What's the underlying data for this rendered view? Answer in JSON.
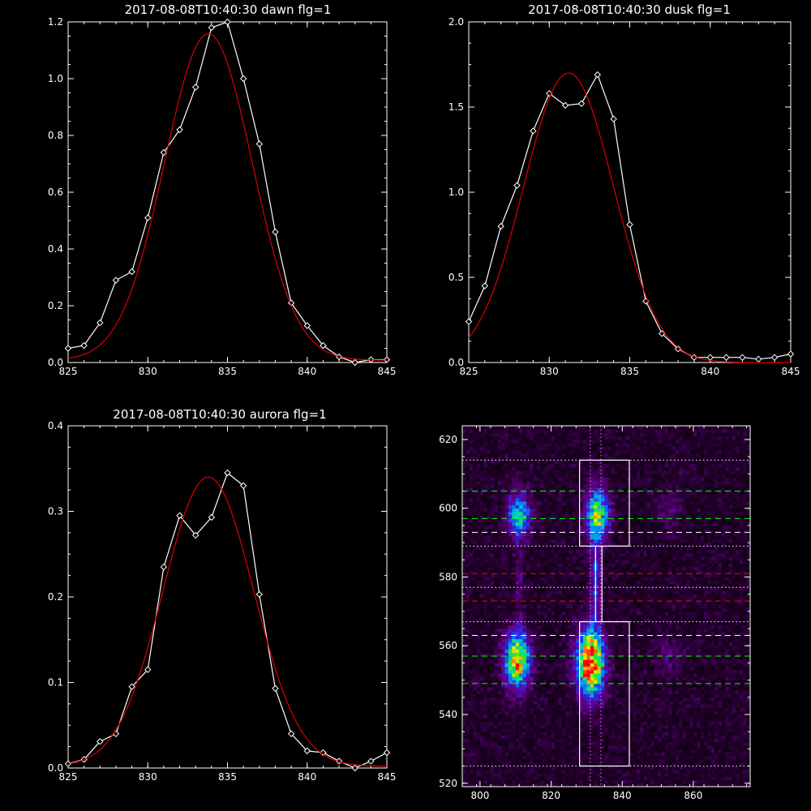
{
  "chart_data": [
    {
      "id": "dawn",
      "type": "line",
      "title": "2017-08-08T10:40:30 dawn flg=1",
      "xlim": [
        825,
        845
      ],
      "ylim": [
        0,
        1.2
      ],
      "xticks": [
        "825",
        "830",
        "835",
        "840",
        "845"
      ],
      "yticks": [
        "0.0",
        "0.2",
        "0.4",
        "0.6",
        "0.8",
        "1.0",
        "1.2"
      ],
      "series": [
        {
          "role": "measured",
          "color": "#ffffff",
          "marker": "diamond",
          "x": [
            825,
            826,
            827,
            828,
            829,
            830,
            831,
            832,
            833,
            834,
            835,
            836,
            837,
            838,
            839,
            840,
            841,
            842,
            843,
            844,
            845
          ],
          "y": [
            0.05,
            0.06,
            0.14,
            0.29,
            0.32,
            0.51,
            0.74,
            0.82,
            0.97,
            1.18,
            1.2,
            1.0,
            0.77,
            0.46,
            0.21,
            0.13,
            0.06,
            0.02,
            0.0,
            0.01,
            0.01
          ]
        },
        {
          "role": "fit",
          "color": "#dd0000",
          "model": "gaussian",
          "amp": 1.15,
          "center": 833.8,
          "sigma": 2.75,
          "offset": 0.008
        }
      ]
    },
    {
      "id": "dusk",
      "type": "line",
      "title": "2017-08-08T10:40:30 dusk flg=1",
      "xlim": [
        825,
        845
      ],
      "ylim": [
        0,
        2.0
      ],
      "xticks": [
        "825",
        "830",
        "835",
        "840",
        "845"
      ],
      "yticks": [
        "0.0",
        "0.5",
        "1.0",
        "1.5",
        "2.0"
      ],
      "series": [
        {
          "role": "measured",
          "color": "#ffffff",
          "marker": "diamond",
          "x": [
            825,
            826,
            827,
            828,
            829,
            830,
            831,
            832,
            833,
            834,
            835,
            836,
            837,
            838,
            839,
            840,
            841,
            842,
            843,
            844,
            845
          ],
          "y": [
            0.24,
            0.45,
            0.8,
            1.04,
            1.36,
            1.58,
            1.51,
            1.52,
            1.69,
            1.43,
            0.81,
            0.36,
            0.17,
            0.08,
            0.03,
            0.03,
            0.03,
            0.03,
            0.02,
            0.03,
            0.05
          ]
        },
        {
          "role": "fit",
          "color": "#dd0000",
          "model": "gaussian",
          "amp": 1.7,
          "center": 831.2,
          "sigma": 2.8,
          "offset": 0.0
        }
      ]
    },
    {
      "id": "aurora",
      "type": "line",
      "title": "2017-08-08T10:40:30 aurora flg=1",
      "xlim": [
        825,
        845
      ],
      "ylim": [
        0,
        0.4
      ],
      "xticks": [
        "825",
        "830",
        "835",
        "840",
        "845"
      ],
      "yticks": [
        "0.0",
        "0.1",
        "0.2",
        "0.3",
        "0.4"
      ],
      "series": [
        {
          "role": "measured",
          "color": "#ffffff",
          "marker": "diamond",
          "x": [
            825,
            826,
            827,
            828,
            829,
            830,
            831,
            832,
            833,
            834,
            835,
            836,
            837,
            838,
            839,
            840,
            841,
            842,
            843,
            844,
            845
          ],
          "y": [
            0.005,
            0.01,
            0.031,
            0.04,
            0.095,
            0.115,
            0.235,
            0.295,
            0.272,
            0.293,
            0.345,
            0.33,
            0.203,
            0.093,
            0.04,
            0.02,
            0.018,
            0.008,
            0.0,
            0.008,
            0.018
          ]
        },
        {
          "role": "fit",
          "color": "#dd0000",
          "model": "gaussian",
          "amp": 0.338,
          "center": 833.8,
          "sigma": 2.85,
          "offset": 0.002
        }
      ]
    },
    {
      "id": "image",
      "type": "heatmap",
      "title": "",
      "xlim": [
        795,
        876
      ],
      "ylim": [
        519,
        624
      ],
      "xticks": [
        "800",
        "820",
        "840",
        "860"
      ],
      "yticks": [
        "520",
        "540",
        "560",
        "580",
        "600",
        "620"
      ],
      "colormap": "rainbow",
      "sources": [
        {
          "x": 810.5,
          "y": 556,
          "sx": 2.4,
          "sy": 5.5,
          "amp": 0.78
        },
        {
          "x": 831,
          "y": 555,
          "sx": 2.6,
          "sy": 6.5,
          "amp": 1.0
        },
        {
          "x": 811,
          "y": 598,
          "sx": 2.2,
          "sy": 4.5,
          "amp": 0.5
        },
        {
          "x": 833,
          "y": 598,
          "sx": 2.2,
          "sy": 5.5,
          "amp": 0.62
        },
        {
          "x": 832.5,
          "y": 578,
          "sx": 0.9,
          "sy": 8,
          "amp": 0.3
        },
        {
          "x": 811,
          "y": 579,
          "sx": 0.9,
          "sy": 7,
          "amp": 0.12
        },
        {
          "x": 853,
          "y": 557,
          "sx": 2.5,
          "sy": 4,
          "amp": 0.12
        },
        {
          "x": 853,
          "y": 600,
          "sx": 2.5,
          "sy": 4,
          "amp": 0.1
        }
      ],
      "boxes": [
        {
          "x0": 828,
          "x1": 842,
          "y0": 525,
          "y1": 567
        },
        {
          "x0": 828,
          "x1": 842,
          "y0": 589,
          "y1": 614
        }
      ],
      "hlines": [
        {
          "y": 614,
          "color": "#ffffff",
          "style": "dotted"
        },
        {
          "y": 605,
          "color": "#00ff00",
          "style": "dashed"
        },
        {
          "y": 597,
          "color": "#00ff00",
          "style": "dashed"
        },
        {
          "y": 593,
          "color": "#ffffff",
          "style": "dashed"
        },
        {
          "y": 589,
          "color": "#ffffff",
          "style": "dotted"
        },
        {
          "y": 581,
          "color": "#ff0000",
          "style": "dashed"
        },
        {
          "y": 577,
          "color": "#ffffff",
          "style": "dotted"
        },
        {
          "y": 573,
          "color": "#ff0000",
          "style": "dashed"
        },
        {
          "y": 567,
          "color": "#ffffff",
          "style": "dotted"
        },
        {
          "y": 563,
          "color": "#ffffff",
          "style": "dashed"
        },
        {
          "y": 557,
          "color": "#00ff00",
          "style": "dashed"
        },
        {
          "y": 549,
          "color": "#00ff00",
          "style": "dashed"
        },
        {
          "y": 525,
          "color": "#ffffff",
          "style": "dotted"
        }
      ],
      "vlines": [
        {
          "x": 831,
          "color": "#ff66ff",
          "style": "dotted"
        },
        {
          "x": 834,
          "color": "#ff66ff",
          "style": "dotted"
        }
      ]
    }
  ]
}
